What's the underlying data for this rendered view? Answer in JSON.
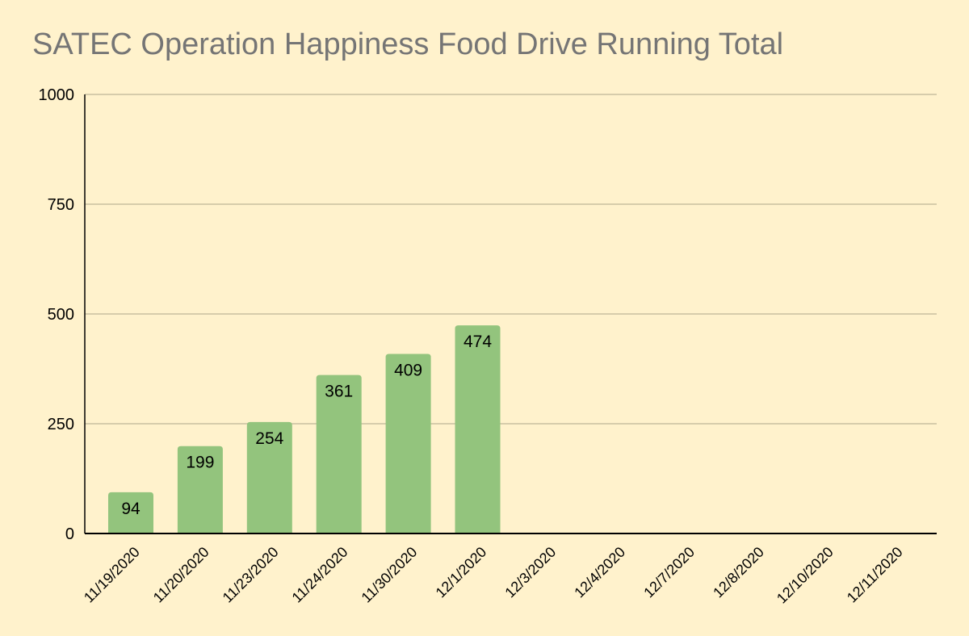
{
  "chart_data": {
    "type": "bar",
    "title": "SATEC Operation Happiness Food Drive Running Total",
    "xlabel": "",
    "ylabel": "",
    "categories": [
      "11/19/2020",
      "11/20/2020",
      "11/23/2020",
      "11/24/2020",
      "11/30/2020",
      "12/1/2020",
      "12/3/2020",
      "12/4/2020",
      "12/7/2020",
      "12/8/2020",
      "12/10/2020",
      "12/11/2020"
    ],
    "values": [
      94,
      199,
      254,
      361,
      409,
      474,
      null,
      null,
      null,
      null,
      null,
      null
    ],
    "ylim": [
      0,
      1000
    ],
    "yticks": [
      0,
      250,
      500,
      750,
      1000
    ],
    "grid": true,
    "legend": "none",
    "colors": {
      "background": "#fff2cc",
      "bar": "#93c47d",
      "grid": "#c8bfa0",
      "axis": "#000000",
      "title": "#757575"
    }
  }
}
